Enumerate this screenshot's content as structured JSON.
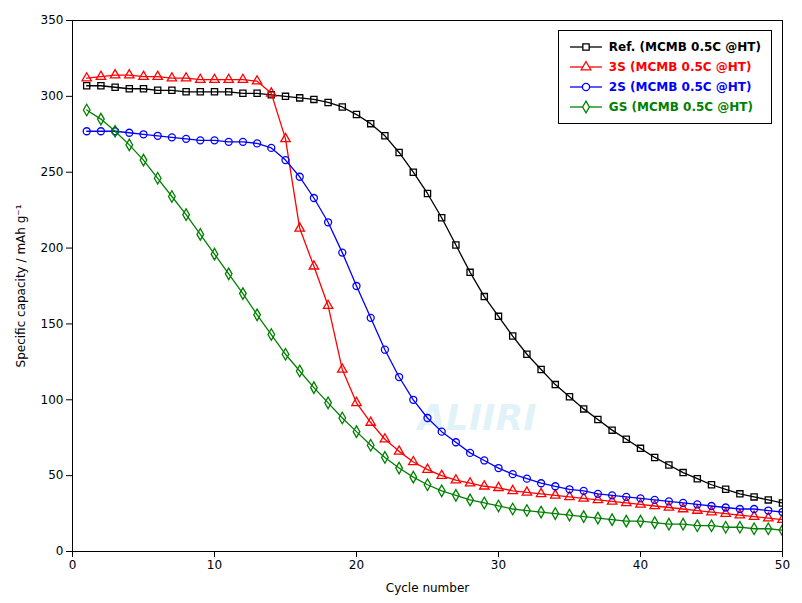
{
  "chart_data": {
    "type": "line",
    "xlabel": "Cycle number",
    "ylabel": "Specific capacity / mAh g⁻¹",
    "xlim": [
      0,
      50
    ],
    "ylim": [
      0,
      350
    ],
    "xticks": [
      0,
      10,
      20,
      30,
      40,
      50
    ],
    "yticks": [
      0,
      50,
      100,
      150,
      200,
      250,
      300,
      350
    ],
    "grid": false,
    "legend": "upper right",
    "x": [
      1,
      2,
      3,
      4,
      5,
      6,
      7,
      8,
      9,
      10,
      11,
      12,
      13,
      14,
      15,
      16,
      17,
      18,
      19,
      20,
      21,
      22,
      23,
      24,
      25,
      26,
      27,
      28,
      29,
      30,
      31,
      32,
      33,
      34,
      35,
      36,
      37,
      38,
      39,
      40,
      41,
      42,
      43,
      44,
      45,
      46,
      47,
      48,
      49,
      50
    ],
    "series": [
      {
        "name": "Ref. (MCMB 0.5C @HT)",
        "color": "#000000",
        "marker": "square",
        "values": [
          307,
          307,
          306,
          305,
          305,
          304,
          304,
          303,
          303,
          303,
          303,
          302,
          302,
          301,
          300,
          299,
          298,
          296,
          293,
          288,
          282,
          274,
          263,
          250,
          236,
          220,
          202,
          184,
          168,
          155,
          142,
          130,
          120,
          110,
          102,
          94,
          87,
          80,
          74,
          68,
          62,
          57,
          52,
          48,
          44,
          41,
          38,
          36,
          34,
          32
        ]
      },
      {
        "name": "3S (MCMB 0.5C @HT)",
        "color": "#ff0000",
        "marker": "triangle",
        "values": [
          312,
          313,
          314,
          314,
          313,
          313,
          312,
          312,
          311,
          311,
          311,
          311,
          310,
          302,
          272,
          213,
          188,
          162,
          120,
          98,
          85,
          74,
          66,
          59,
          54,
          50,
          47,
          45,
          43,
          42,
          40,
          39,
          38,
          37,
          36,
          35,
          34,
          33,
          32,
          31,
          30,
          29,
          28,
          27,
          26,
          25,
          24,
          23,
          22,
          21
        ]
      },
      {
        "name": "2S (MCMB 0.5C @HT)",
        "color": "#0000ff",
        "marker": "circle",
        "values": [
          277,
          277,
          277,
          276,
          275,
          274,
          273,
          272,
          271,
          271,
          270,
          270,
          269,
          266,
          258,
          247,
          233,
          217,
          197,
          175,
          154,
          133,
          115,
          100,
          88,
          79,
          72,
          65,
          60,
          55,
          51,
          48,
          45,
          43,
          41,
          40,
          38,
          37,
          36,
          35,
          34,
          33,
          32,
          31,
          30,
          29,
          28,
          28,
          27,
          26
        ]
      },
      {
        "name": "GS (MCMB 0.5C @HT)",
        "color": "#008000",
        "marker": "diamond",
        "values": [
          291,
          285,
          277,
          268,
          258,
          246,
          234,
          222,
          209,
          196,
          183,
          170,
          156,
          143,
          130,
          119,
          108,
          98,
          88,
          79,
          70,
          62,
          55,
          49,
          44,
          40,
          37,
          34,
          32,
          30,
          28,
          27,
          26,
          25,
          24,
          23,
          22,
          21,
          20,
          20,
          19,
          18,
          18,
          17,
          17,
          16,
          16,
          15,
          15,
          14
        ]
      }
    ],
    "annotations": [
      {
        "text": "ALIIRI",
        "color": "#aaddee"
      }
    ]
  }
}
